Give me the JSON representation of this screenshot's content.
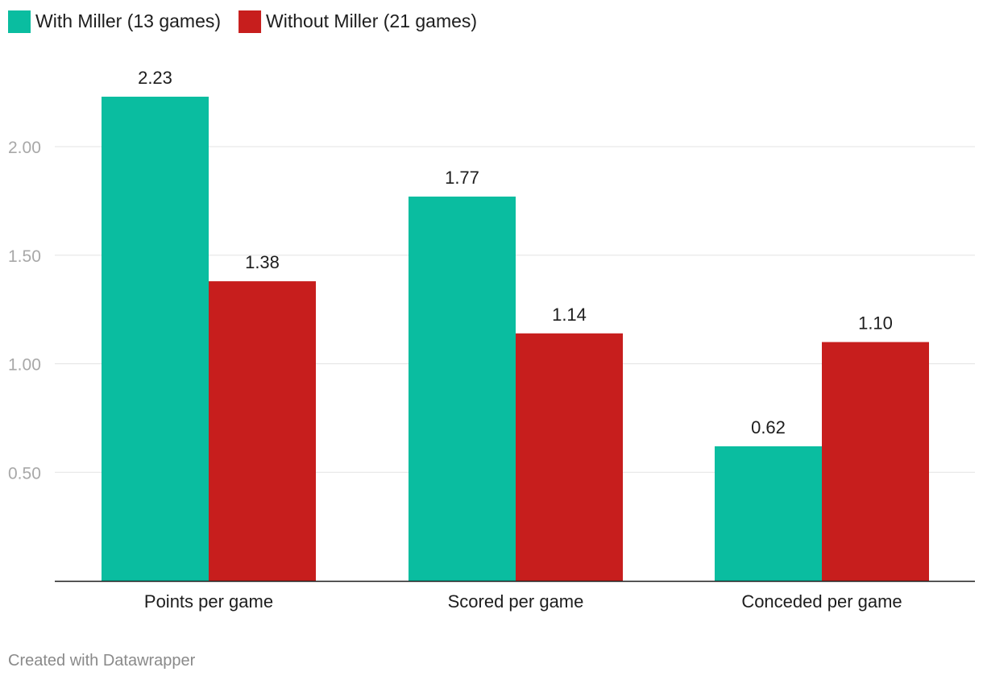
{
  "chart_data": {
    "type": "bar",
    "categories": [
      "Points per game",
      "Scored per game",
      "Conceded per game"
    ],
    "series": [
      {
        "name": "With Miller (13 games)",
        "values": [
          2.23,
          1.77,
          0.62
        ],
        "labels": [
          "2.23",
          "1.77",
          "0.62"
        ],
        "color": "#0abda0"
      },
      {
        "name": "Without Miller (21 games)",
        "values": [
          1.38,
          1.14,
          1.1
        ],
        "labels": [
          "1.38",
          "1.14",
          "1.10"
        ],
        "color": "#c71e1d"
      }
    ],
    "y_ticks": [
      {
        "value": 0.5,
        "label": "0.50"
      },
      {
        "value": 1.0,
        "label": "1.00"
      },
      {
        "value": 1.5,
        "label": "1.50"
      },
      {
        "value": 2.0,
        "label": "2.00"
      }
    ],
    "ylim": [
      0,
      2.3
    ],
    "grid": true,
    "legend_position": "top-left",
    "title": "",
    "xlabel": "",
    "ylabel": ""
  },
  "footer": {
    "credit": "Created with Datawrapper"
  },
  "colors": {
    "grid": "#e3e3e3",
    "axis": "#1d1d1d"
  }
}
